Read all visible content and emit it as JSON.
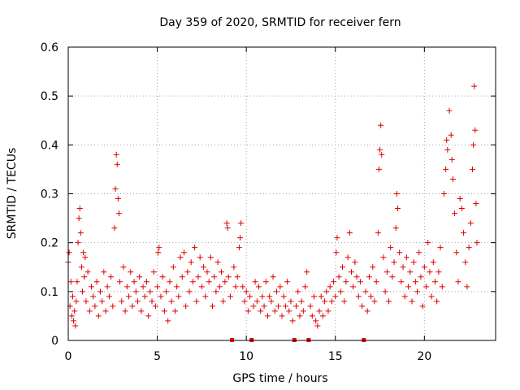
{
  "chart_data": {
    "type": "scatter",
    "title": "Day 359 of 2020, SRMTID for receiver fern",
    "xlabel": "GPS time / hours",
    "ylabel": "SRMTID / TECUs",
    "xlim": [
      0,
      24
    ],
    "ylim": [
      0,
      0.6
    ],
    "x_ticks": [
      0,
      5,
      10,
      15,
      20
    ],
    "x_tick_labels": [
      "0",
      "5",
      "10",
      "15",
      "20"
    ],
    "y_ticks": [
      0,
      0.1,
      0.2,
      0.3,
      0.4,
      0.5,
      0.6
    ],
    "y_tick_labels": [
      "0",
      "0.1",
      "0.2",
      "0.3",
      "0.4",
      "0.5",
      "0.6"
    ],
    "grid": true,
    "marker": "+",
    "marker_color": "#e00000",
    "data_gap_markers_at_hours": [
      9.2,
      10.3,
      12.7,
      13.5,
      16.6
    ],
    "series": [
      {
        "name": "SRMTID",
        "points": [
          [
            0.0,
            0.16
          ],
          [
            0.05,
            0.18
          ],
          [
            0.1,
            0.07
          ],
          [
            0.15,
            0.12
          ],
          [
            0.2,
            0.05
          ],
          [
            0.25,
            0.09
          ],
          [
            0.3,
            0.04
          ],
          [
            0.35,
            0.06
          ],
          [
            0.4,
            0.03
          ],
          [
            0.45,
            0.08
          ],
          [
            0.5,
            0.12
          ],
          [
            0.55,
            0.2
          ],
          [
            0.6,
            0.25
          ],
          [
            0.65,
            0.27
          ],
          [
            0.7,
            0.22
          ],
          [
            0.75,
            0.15
          ],
          [
            0.8,
            0.1
          ],
          [
            0.85,
            0.18
          ],
          [
            0.9,
            0.13
          ],
          [
            0.95,
            0.17
          ],
          [
            1.0,
            0.08
          ],
          [
            1.1,
            0.14
          ],
          [
            1.2,
            0.06
          ],
          [
            1.3,
            0.11
          ],
          [
            1.4,
            0.09
          ],
          [
            1.5,
            0.07
          ],
          [
            1.6,
            0.12
          ],
          [
            1.7,
            0.05
          ],
          [
            1.8,
            0.1
          ],
          [
            1.9,
            0.08
          ],
          [
            2.0,
            0.14
          ],
          [
            2.1,
            0.06
          ],
          [
            2.2,
            0.11
          ],
          [
            2.3,
            0.09
          ],
          [
            2.4,
            0.13
          ],
          [
            2.5,
            0.07
          ],
          [
            2.6,
            0.23
          ],
          [
            2.65,
            0.31
          ],
          [
            2.7,
            0.38
          ],
          [
            2.75,
            0.36
          ],
          [
            2.8,
            0.29
          ],
          [
            2.85,
            0.26
          ],
          [
            2.9,
            0.12
          ],
          [
            3.0,
            0.08
          ],
          [
            3.1,
            0.15
          ],
          [
            3.2,
            0.06
          ],
          [
            3.3,
            0.11
          ],
          [
            3.4,
            0.09
          ],
          [
            3.5,
            0.14
          ],
          [
            3.6,
            0.07
          ],
          [
            3.7,
            0.12
          ],
          [
            3.8,
            0.1
          ],
          [
            3.9,
            0.08
          ],
          [
            4.0,
            0.13
          ],
          [
            4.1,
            0.06
          ],
          [
            4.2,
            0.11
          ],
          [
            4.3,
            0.09
          ],
          [
            4.4,
            0.12
          ],
          [
            4.5,
            0.05
          ],
          [
            4.6,
            0.1
          ],
          [
            4.7,
            0.08
          ],
          [
            4.8,
            0.14
          ],
          [
            4.9,
            0.07
          ],
          [
            5.0,
            0.11
          ],
          [
            5.05,
            0.18
          ],
          [
            5.1,
            0.19
          ],
          [
            5.2,
            0.09
          ],
          [
            5.3,
            0.13
          ],
          [
            5.4,
            0.06
          ],
          [
            5.5,
            0.1
          ],
          [
            5.6,
            0.04
          ],
          [
            5.7,
            0.12
          ],
          [
            5.8,
            0.08
          ],
          [
            5.9,
            0.15
          ],
          [
            6.0,
            0.06
          ],
          [
            6.1,
            0.11
          ],
          [
            6.2,
            0.09
          ],
          [
            6.3,
            0.17
          ],
          [
            6.4,
            0.13
          ],
          [
            6.5,
            0.18
          ],
          [
            6.6,
            0.07
          ],
          [
            6.7,
            0.14
          ],
          [
            6.8,
            0.1
          ],
          [
            6.9,
            0.16
          ],
          [
            7.0,
            0.12
          ],
          [
            7.1,
            0.19
          ],
          [
            7.2,
            0.08
          ],
          [
            7.3,
            0.13
          ],
          [
            7.4,
            0.17
          ],
          [
            7.5,
            0.11
          ],
          [
            7.6,
            0.15
          ],
          [
            7.7,
            0.09
          ],
          [
            7.8,
            0.14
          ],
          [
            7.9,
            0.12
          ],
          [
            8.0,
            0.17
          ],
          [
            8.1,
            0.07
          ],
          [
            8.2,
            0.13
          ],
          [
            8.3,
            0.1
          ],
          [
            8.4,
            0.16
          ],
          [
            8.5,
            0.11
          ],
          [
            8.6,
            0.14
          ],
          [
            8.7,
            0.08
          ],
          [
            8.8,
            0.12
          ],
          [
            8.9,
            0.24
          ],
          [
            8.95,
            0.23
          ],
          [
            9.0,
            0.13
          ],
          [
            9.1,
            0.09
          ],
          [
            9.3,
            0.15
          ],
          [
            9.4,
            0.11
          ],
          [
            9.5,
            0.13
          ],
          [
            9.6,
            0.19
          ],
          [
            9.65,
            0.21
          ],
          [
            9.7,
            0.24
          ],
          [
            9.8,
            0.11
          ],
          [
            9.9,
            0.08
          ],
          [
            10.0,
            0.1
          ],
          [
            10.1,
            0.06
          ],
          [
            10.2,
            0.09
          ],
          [
            10.4,
            0.07
          ],
          [
            10.5,
            0.12
          ],
          [
            10.6,
            0.08
          ],
          [
            10.7,
            0.11
          ],
          [
            10.8,
            0.06
          ],
          [
            10.9,
            0.09
          ],
          [
            11.0,
            0.07
          ],
          [
            11.1,
            0.12
          ],
          [
            11.2,
            0.05
          ],
          [
            11.3,
            0.09
          ],
          [
            11.4,
            0.08
          ],
          [
            11.5,
            0.13
          ],
          [
            11.6,
            0.06
          ],
          [
            11.7,
            0.1
          ],
          [
            11.8,
            0.07
          ],
          [
            11.9,
            0.11
          ],
          [
            12.0,
            0.05
          ],
          [
            12.1,
            0.09
          ],
          [
            12.2,
            0.07
          ],
          [
            12.3,
            0.12
          ],
          [
            12.4,
            0.06
          ],
          [
            12.5,
            0.08
          ],
          [
            12.6,
            0.04
          ],
          [
            12.8,
            0.07
          ],
          [
            12.9,
            0.1
          ],
          [
            13.0,
            0.05
          ],
          [
            13.1,
            0.08
          ],
          [
            13.2,
            0.06
          ],
          [
            13.3,
            0.11
          ],
          [
            13.4,
            0.14
          ],
          [
            13.6,
            0.07
          ],
          [
            13.7,
            0.05
          ],
          [
            13.8,
            0.09
          ],
          [
            13.9,
            0.04
          ],
          [
            14.0,
            0.03
          ],
          [
            14.1,
            0.06
          ],
          [
            14.2,
            0.09
          ],
          [
            14.3,
            0.05
          ],
          [
            14.4,
            0.08
          ],
          [
            14.5,
            0.1
          ],
          [
            14.6,
            0.06
          ],
          [
            14.7,
            0.11
          ],
          [
            14.8,
            0.08
          ],
          [
            14.9,
            0.12
          ],
          [
            15.0,
            0.09
          ],
          [
            15.05,
            0.18
          ],
          [
            15.1,
            0.21
          ],
          [
            15.2,
            0.13
          ],
          [
            15.3,
            0.1
          ],
          [
            15.4,
            0.15
          ],
          [
            15.5,
            0.08
          ],
          [
            15.6,
            0.12
          ],
          [
            15.7,
            0.17
          ],
          [
            15.8,
            0.22
          ],
          [
            15.9,
            0.14
          ],
          [
            16.0,
            0.11
          ],
          [
            16.1,
            0.16
          ],
          [
            16.2,
            0.13
          ],
          [
            16.3,
            0.09
          ],
          [
            16.4,
            0.12
          ],
          [
            16.5,
            0.07
          ],
          [
            16.7,
            0.1
          ],
          [
            16.8,
            0.06
          ],
          [
            16.9,
            0.13
          ],
          [
            17.0,
            0.09
          ],
          [
            17.1,
            0.15
          ],
          [
            17.2,
            0.08
          ],
          [
            17.3,
            0.12
          ],
          [
            17.4,
            0.22
          ],
          [
            17.45,
            0.35
          ],
          [
            17.5,
            0.39
          ],
          [
            17.55,
            0.44
          ],
          [
            17.6,
            0.38
          ],
          [
            17.7,
            0.17
          ],
          [
            17.8,
            0.1
          ],
          [
            17.9,
            0.14
          ],
          [
            18.0,
            0.08
          ],
          [
            18.1,
            0.19
          ],
          [
            18.2,
            0.13
          ],
          [
            18.3,
            0.16
          ],
          [
            18.4,
            0.23
          ],
          [
            18.45,
            0.3
          ],
          [
            18.5,
            0.27
          ],
          [
            18.6,
            0.18
          ],
          [
            18.7,
            0.12
          ],
          [
            18.8,
            0.15
          ],
          [
            18.9,
            0.09
          ],
          [
            19.0,
            0.17
          ],
          [
            19.1,
            0.11
          ],
          [
            19.2,
            0.14
          ],
          [
            19.3,
            0.08
          ],
          [
            19.4,
            0.16
          ],
          [
            19.5,
            0.12
          ],
          [
            19.6,
            0.1
          ],
          [
            19.7,
            0.18
          ],
          [
            19.8,
            0.13
          ],
          [
            19.9,
            0.07
          ],
          [
            20.0,
            0.15
          ],
          [
            20.1,
            0.11
          ],
          [
            20.2,
            0.2
          ],
          [
            20.3,
            0.14
          ],
          [
            20.4,
            0.09
          ],
          [
            20.5,
            0.16
          ],
          [
            20.6,
            0.12
          ],
          [
            20.7,
            0.08
          ],
          [
            20.8,
            0.14
          ],
          [
            20.9,
            0.19
          ],
          [
            21.0,
            0.11
          ],
          [
            21.1,
            0.3
          ],
          [
            21.2,
            0.35
          ],
          [
            21.25,
            0.41
          ],
          [
            21.3,
            0.39
          ],
          [
            21.4,
            0.47
          ],
          [
            21.5,
            0.42
          ],
          [
            21.55,
            0.37
          ],
          [
            21.6,
            0.33
          ],
          [
            21.7,
            0.26
          ],
          [
            21.8,
            0.18
          ],
          [
            21.9,
            0.12
          ],
          [
            22.0,
            0.29
          ],
          [
            22.1,
            0.27
          ],
          [
            22.2,
            0.22
          ],
          [
            22.3,
            0.16
          ],
          [
            22.4,
            0.11
          ],
          [
            22.5,
            0.19
          ],
          [
            22.6,
            0.24
          ],
          [
            22.7,
            0.35
          ],
          [
            22.75,
            0.4
          ],
          [
            22.8,
            0.52
          ],
          [
            22.85,
            0.43
          ],
          [
            22.9,
            0.28
          ],
          [
            22.95,
            0.2
          ]
        ]
      }
    ]
  }
}
